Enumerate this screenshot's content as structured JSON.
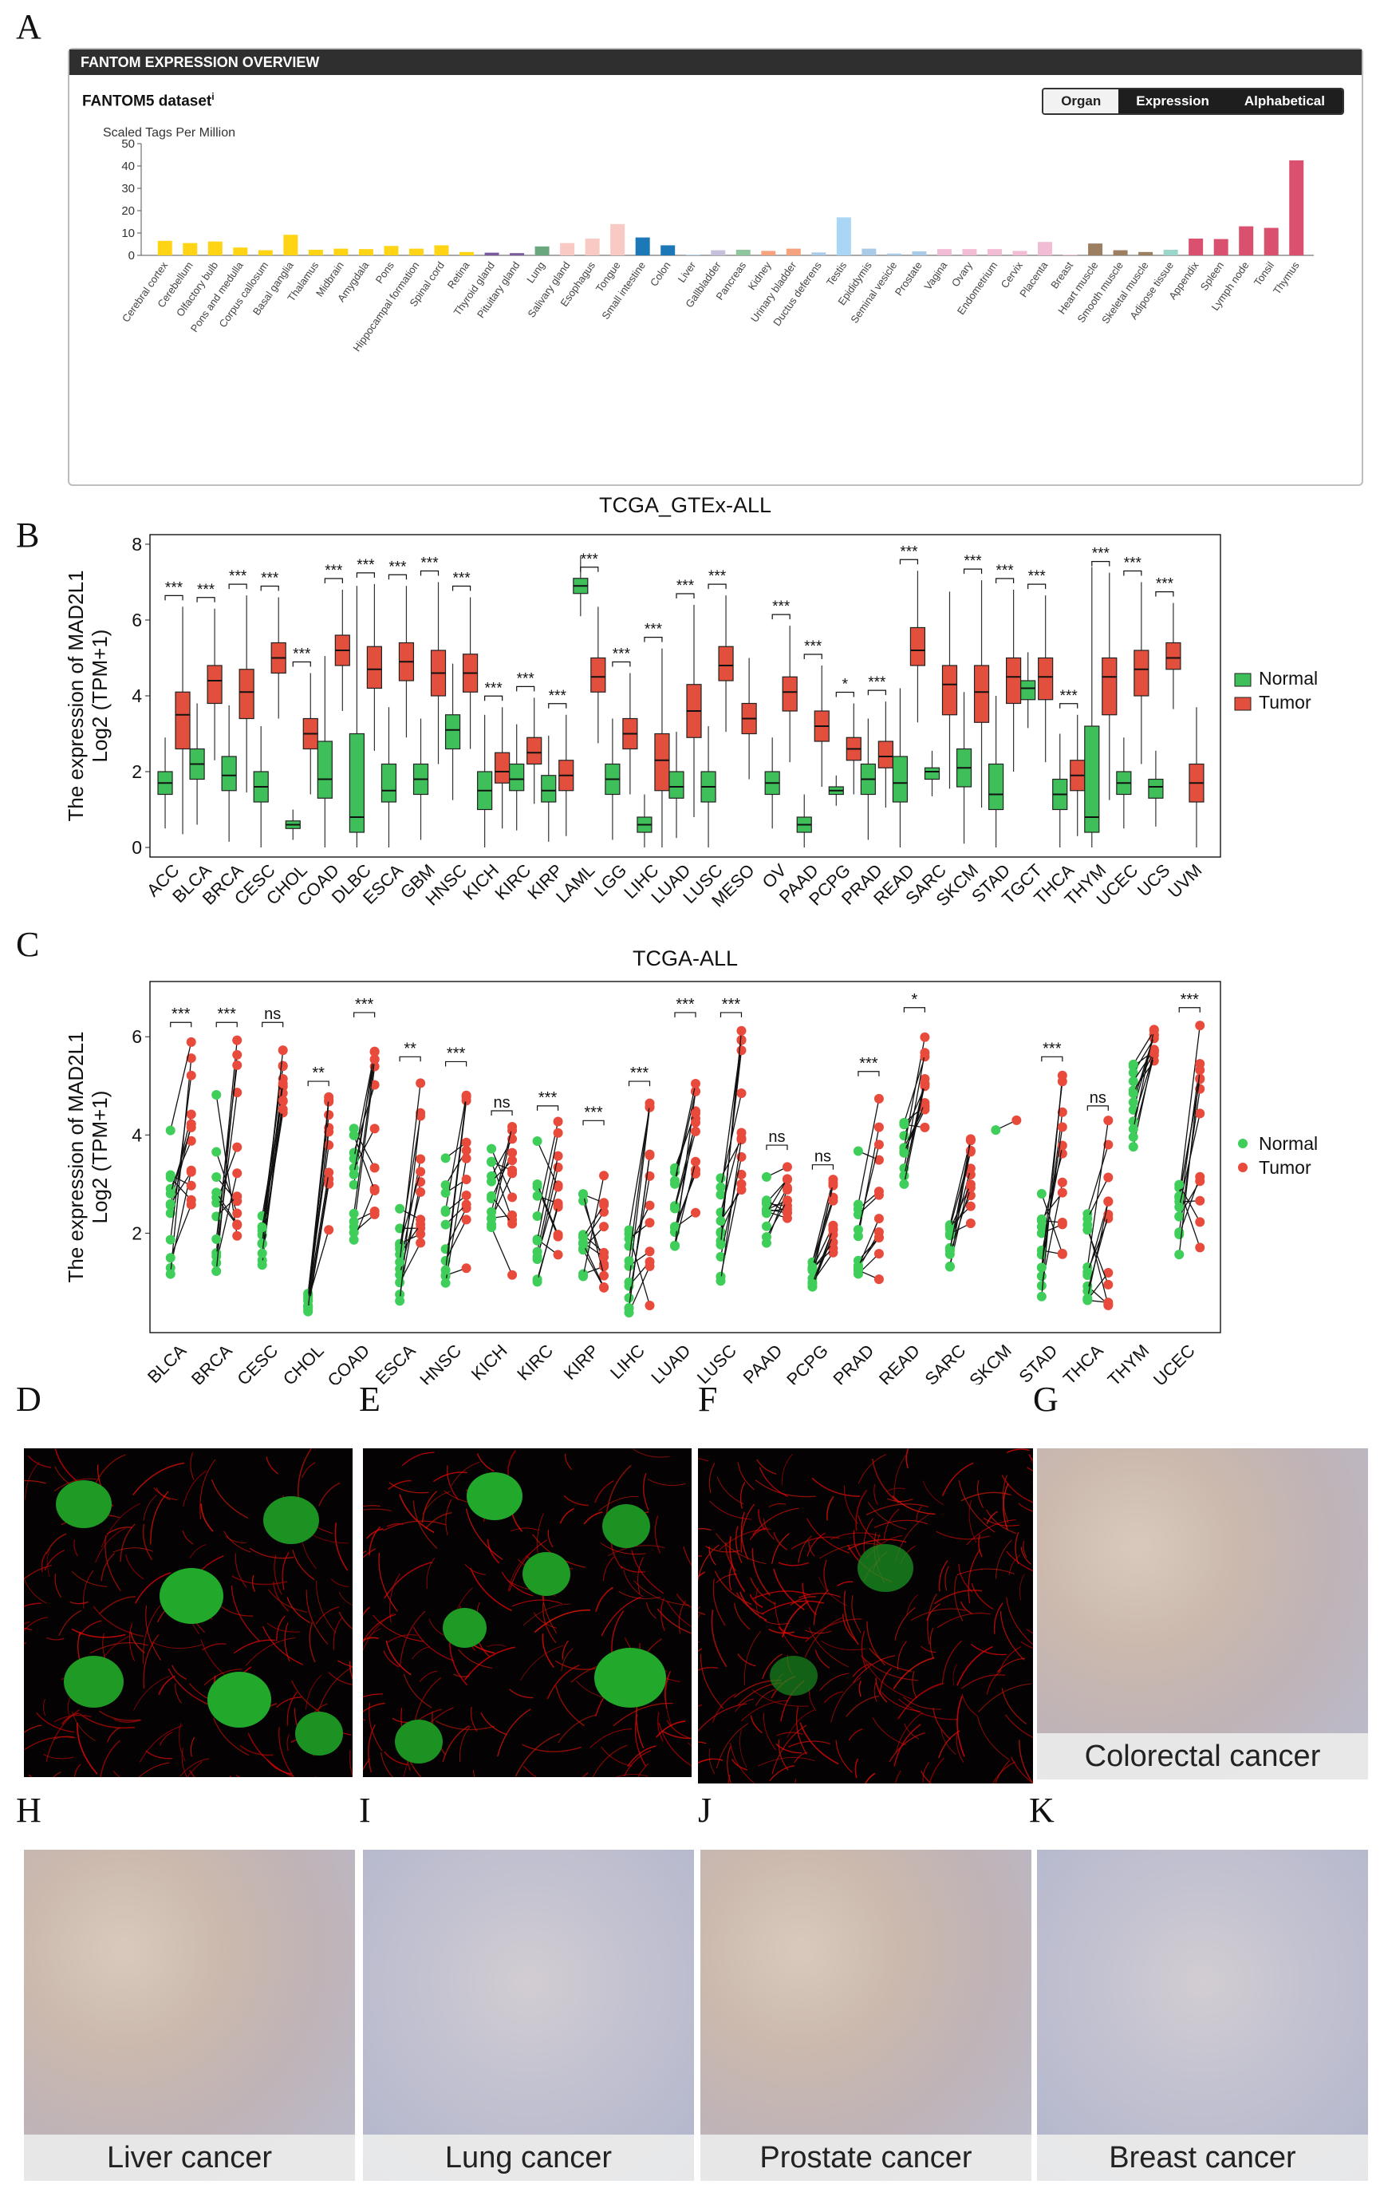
{
  "panel_labels": {
    "A": "A",
    "B": "B",
    "C": "C",
    "D": "D",
    "E": "E",
    "F": "F",
    "G": "G",
    "H": "H",
    "I": "I",
    "J": "J",
    "K": "K"
  },
  "fantom": {
    "header": "FANTOM EXPRESSION OVERVIEW",
    "dataset": "FANTOM5 dataset",
    "dataset_info": "i",
    "toggles": [
      "Organ",
      "Expression",
      "Alphabetical"
    ],
    "active_toggle": "Organ",
    "y_label": "Scaled Tags Per Million"
  },
  "ihc_captions": {
    "G": "Colorectal cancer",
    "H": "Liver cancer",
    "I": "Lung cancer",
    "J": "Prostate cancer",
    "K": "Breast cancer"
  },
  "chart_data": [
    {
      "type": "bar",
      "ylabel": "Scaled Tags Per Million",
      "ylim": [
        0,
        50
      ],
      "yticks": [
        0,
        10,
        20,
        30,
        40,
        50
      ],
      "categories": [
        "Cerebral cortex",
        "Cerebellum",
        "Olfactory bulb",
        "Pons and medulla",
        "Corpus callosum",
        "Basal ganglia",
        "Thalamus",
        "Midbrain",
        "Amygdala",
        "Pons",
        "Hippocampal formation",
        "Spinal cord",
        "Retina",
        "Thyroid gland",
        "Pituitary gland",
        "Lung",
        "Salivary gland",
        "Esophagus",
        "Tongue",
        "Small intestine",
        "Colon",
        "Liver",
        "Gallbladder",
        "Pancreas",
        "Kidney",
        "Urinary bladder",
        "Ductus deferens",
        "Testis",
        "Epididymis",
        "Seminal vesicle",
        "Prostate",
        "Vagina",
        "Ovary",
        "Endometrium",
        "Cervix",
        "Placenta",
        "Breast",
        "Heart muscle",
        "Smooth muscle",
        "Skeletal muscle",
        "Adipose tissue",
        "Appendix",
        "Spleen",
        "Lymph node",
        "Tonsil",
        "Thymus"
      ],
      "values": [
        6.5,
        5.5,
        6.2,
        3.5,
        2.3,
        9.2,
        2.5,
        3.0,
        2.8,
        4.2,
        3.0,
        4.5,
        1.5,
        1.2,
        1.0,
        4.0,
        5.5,
        7.5,
        14.0,
        8.0,
        4.5,
        0.3,
        2.3,
        2.5,
        2.0,
        3.0,
        1.3,
        17.0,
        3.0,
        0.8,
        1.8,
        2.8,
        2.8,
        2.8,
        2.0,
        6.0,
        0.3,
        5.3,
        2.3,
        1.5,
        2.5,
        7.5,
        7.3,
        13.0,
        12.3,
        42.5
      ],
      "colors": [
        "#ffd414",
        "#ffd414",
        "#ffd414",
        "#ffd414",
        "#ffd414",
        "#ffd414",
        "#ffd414",
        "#ffd414",
        "#ffd414",
        "#ffd414",
        "#ffd414",
        "#ffd414",
        "#ffd414",
        "#7b5aa0",
        "#7b5aa0",
        "#6aa67e",
        "#f8cac3",
        "#f8cac3",
        "#f8cac3",
        "#1d78b8",
        "#1d78b8",
        "#a9cbe7",
        "#c7c0dc",
        "#8fc69c",
        "#f5a37f",
        "#f5a37f",
        "#a9cbe7",
        "#a9d6f5",
        "#a9cbe7",
        "#a9cbe7",
        "#a9cbe7",
        "#f2bcd5",
        "#f2bcd5",
        "#f2bcd5",
        "#f2bcd5",
        "#f2bcd5",
        "#f2bcd5",
        "#9c7e60",
        "#9c7e60",
        "#9c7e60",
        "#9ad6c9",
        "#d9516e",
        "#d9516e",
        "#d9516e",
        "#d9516e",
        "#d9516e"
      ]
    },
    {
      "type": "box",
      "title": "TCGA_GTEx-ALL",
      "ylabel": "The expression of MAD2L1",
      "ylabel2": "Log2 (TPM+1)",
      "ylim": [
        0,
        8
      ],
      "yticks": [
        0,
        2,
        4,
        6,
        8
      ],
      "legend": {
        "position": "right",
        "entries": [
          {
            "name": "Normal",
            "color": "#3fbf5a"
          },
          {
            "name": "Tumor",
            "color": "#e2503d"
          }
        ]
      },
      "categories": [
        "ACC",
        "BLCA",
        "BRCA",
        "CESC",
        "CHOL",
        "COAD",
        "DLBC",
        "ESCA",
        "GBM",
        "HNSC",
        "KICH",
        "KIRC",
        "KIRP",
        "LAML",
        "LGG",
        "LIHC",
        "LUAD",
        "LUSC",
        "MESO",
        "OV",
        "PAAD",
        "PCPG",
        "PRAD",
        "READ",
        "SARC",
        "SKCM",
        "STAD",
        "TGCT",
        "THCA",
        "THYM",
        "UCEC",
        "UCS",
        "UVM"
      ],
      "series": [
        {
          "name": "Normal",
          "medians": [
            1.7,
            2.2,
            1.9,
            1.6,
            0.6,
            1.8,
            0.8,
            1.5,
            1.8,
            3.1,
            1.5,
            1.8,
            1.5,
            6.9,
            1.8,
            0.6,
            1.6,
            1.6,
            null,
            1.7,
            0.6,
            1.5,
            1.8,
            1.7,
            2.0,
            2.1,
            1.4,
            4.2,
            1.4,
            0.8,
            1.7,
            1.6,
            null
          ],
          "q1": [
            1.4,
            1.8,
            1.5,
            1.2,
            0.5,
            1.3,
            0.4,
            1.2,
            1.4,
            2.6,
            1.0,
            1.5,
            1.2,
            6.7,
            1.4,
            0.4,
            1.3,
            1.2,
            null,
            1.4,
            0.4,
            1.4,
            1.4,
            1.2,
            1.8,
            1.6,
            1.0,
            3.9,
            1.0,
            0.4,
            1.4,
            1.3,
            null
          ],
          "q3": [
            2.0,
            2.6,
            2.4,
            2.0,
            0.7,
            2.8,
            3.0,
            2.2,
            2.2,
            3.5,
            2.0,
            2.2,
            1.9,
            7.1,
            2.2,
            0.8,
            2.0,
            2.0,
            null,
            2.0,
            0.8,
            1.6,
            2.2,
            2.4,
            2.1,
            2.6,
            2.2,
            4.4,
            1.8,
            3.2,
            2.0,
            1.8,
            null
          ]
        },
        {
          "name": "Tumor",
          "medians": [
            3.5,
            4.4,
            4.1,
            5.0,
            3.0,
            5.2,
            4.7,
            4.9,
            4.6,
            4.6,
            2.0,
            2.5,
            1.9,
            4.5,
            3.0,
            2.3,
            3.6,
            4.8,
            3.4,
            4.1,
            3.2,
            2.6,
            2.4,
            5.2,
            4.3,
            4.1,
            4.5,
            4.5,
            1.9,
            4.5,
            4.7,
            5.0,
            1.7
          ],
          "q1": [
            2.6,
            3.8,
            3.4,
            4.6,
            2.6,
            4.8,
            4.2,
            4.4,
            4.0,
            4.1,
            1.7,
            2.2,
            1.5,
            4.1,
            2.6,
            1.5,
            2.9,
            4.4,
            3.0,
            3.6,
            2.8,
            2.3,
            2.1,
            4.8,
            3.5,
            3.3,
            3.8,
            3.9,
            1.5,
            3.5,
            4.0,
            4.7,
            1.2
          ],
          "q3": [
            4.1,
            4.8,
            4.7,
            5.4,
            3.4,
            5.6,
            5.3,
            5.4,
            5.2,
            5.1,
            2.5,
            2.9,
            2.3,
            5.0,
            3.4,
            3.0,
            4.3,
            5.3,
            3.8,
            4.5,
            3.6,
            2.9,
            2.8,
            5.8,
            4.8,
            4.8,
            5.0,
            5.0,
            2.3,
            5.0,
            5.2,
            5.4,
            2.2
          ]
        }
      ],
      "significance": [
        "***",
        "***",
        "***",
        "***",
        "***",
        "***",
        "***",
        "***",
        "***",
        "***",
        "***",
        "***",
        "***",
        "***",
        "***",
        "***",
        "***",
        "***",
        "",
        "***",
        "***",
        "*",
        "***",
        "***",
        "",
        "***",
        "***",
        "***",
        "***",
        "***",
        "***",
        "***",
        ""
      ]
    },
    {
      "type": "paired-scatter",
      "title": "TCGA-ALL",
      "ylabel": "The expression of MAD2L1",
      "ylabel2": "Log2 (TPM+1)",
      "ylim": [
        0.3,
        6.8
      ],
      "yticks": [
        2,
        4,
        6
      ],
      "legend": {
        "position": "right",
        "entries": [
          {
            "name": "Normal",
            "color": "#3fce5a"
          },
          {
            "name": "Tumor",
            "color": "#e84a3c"
          }
        ]
      },
      "categories": [
        "BLCA",
        "BRCA",
        "CESC",
        "CHOL",
        "COAD",
        "ESCA",
        "HNSC",
        "KICH",
        "KIRC",
        "KIRP",
        "LIHC",
        "LUAD",
        "LUSC",
        "PAAD",
        "PCPG",
        "PRAD",
        "READ",
        "SARC",
        "SKCM",
        "STAD",
        "THCA",
        "THYM",
        "UCEC"
      ],
      "normal_range": [
        [
          0.9,
          4.3
        ],
        [
          0.9,
          5.0
        ],
        [
          1.3,
          2.4
        ],
        [
          0.4,
          0.8
        ],
        [
          1.8,
          4.4
        ],
        [
          0.6,
          3.0
        ],
        [
          0.9,
          3.8
        ],
        [
          0.8,
          3.8
        ],
        [
          0.9,
          4.0
        ],
        [
          1.0,
          3.0
        ],
        [
          0.2,
          2.3
        ],
        [
          1.5,
          3.4
        ],
        [
          0.9,
          3.4
        ],
        [
          1.8,
          3.2
        ],
        [
          0.9,
          1.5
        ],
        [
          1.0,
          4.0
        ],
        [
          3.0,
          4.6
        ],
        [
          1.3,
          2.2
        ],
        [
          4.1,
          4.1
        ],
        [
          0.7,
          3.2
        ],
        [
          0.6,
          3.0
        ],
        [
          3.5,
          5.5
        ],
        [
          1.5,
          3.0
        ]
      ],
      "tumor_range": [
        [
          2.4,
          6.0
        ],
        [
          1.0,
          6.0
        ],
        [
          4.3,
          6.0
        ],
        [
          2.0,
          4.8
        ],
        [
          2.3,
          6.2
        ],
        [
          1.8,
          5.3
        ],
        [
          1.0,
          5.2
        ],
        [
          0.9,
          4.2
        ],
        [
          1.5,
          4.3
        ],
        [
          0.8,
          4.0
        ],
        [
          0.4,
          4.8
        ],
        [
          1.7,
          6.2
        ],
        [
          2.7,
          6.2
        ],
        [
          2.3,
          3.5
        ],
        [
          1.6,
          3.1
        ],
        [
          0.4,
          5.0
        ],
        [
          4.0,
          6.3
        ],
        [
          2.0,
          4.4
        ],
        [
          4.3,
          4.3
        ],
        [
          1.2,
          5.3
        ],
        [
          0.5,
          4.3
        ],
        [
          5.5,
          6.2
        ],
        [
          1.7,
          6.3
        ]
      ],
      "significance": [
        "***",
        "***",
        "ns",
        "**",
        "***",
        "**",
        "***",
        "ns",
        "***",
        "***",
        "***",
        "***",
        "***",
        "ns",
        "ns",
        "***",
        "*",
        "",
        "",
        "***",
        "ns",
        "",
        "***"
      ]
    }
  ]
}
